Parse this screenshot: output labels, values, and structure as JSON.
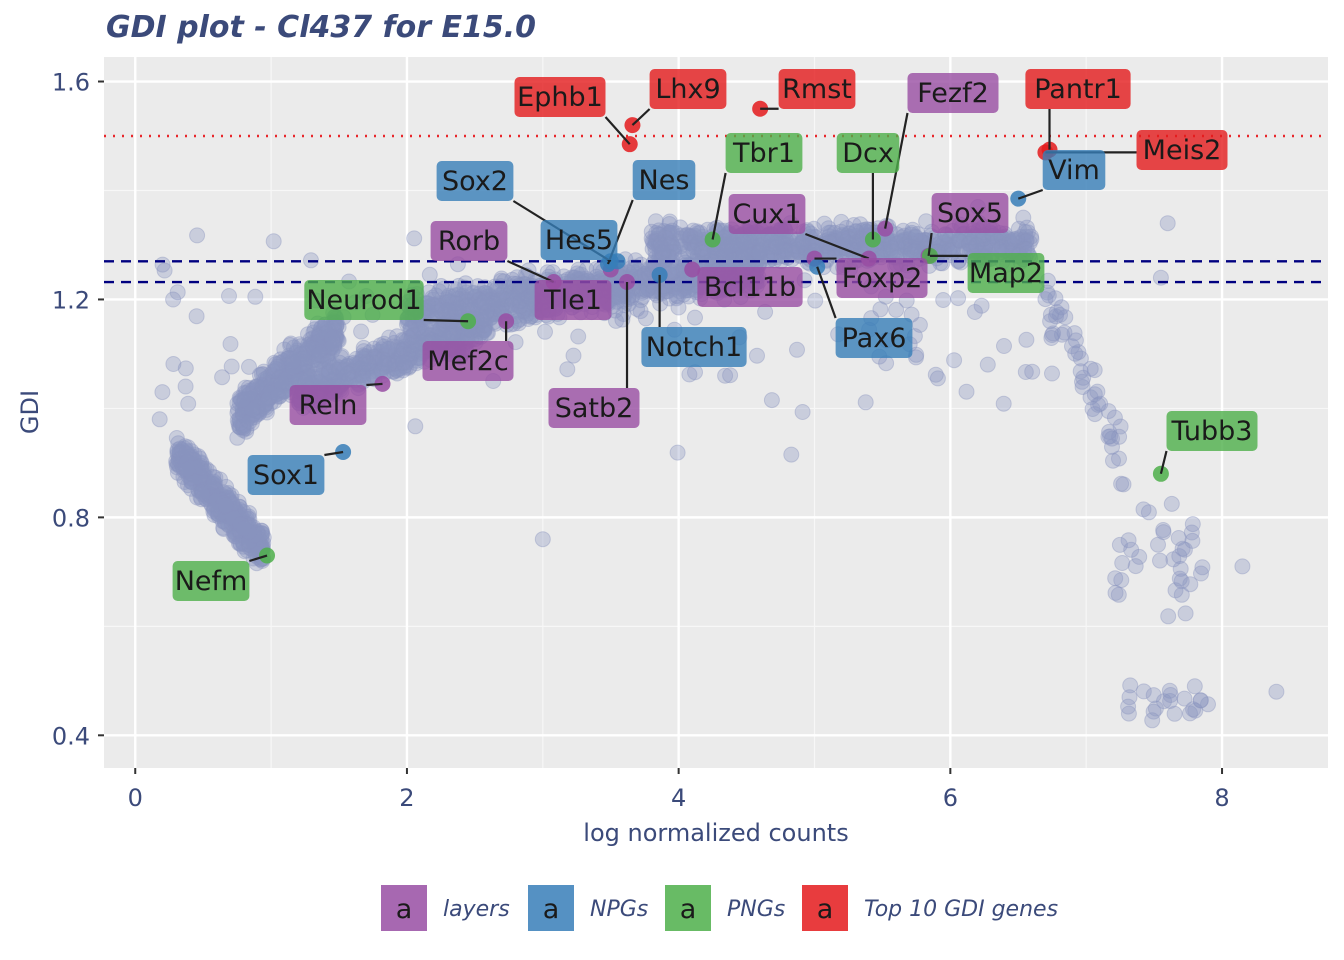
{
  "chart_data": {
    "type": "scatter",
    "title": "GDI plot - Cl437 for E15.0",
    "xlabel": "log normalized counts",
    "ylabel": "GDI",
    "xlim": [
      -0.23,
      8.78
    ],
    "ylim": [
      0.34,
      1.645
    ],
    "x_ticks": [
      0,
      2,
      4,
      6,
      8
    ],
    "x_tick_labels": [
      "0",
      "2",
      "4",
      "6",
      "8"
    ],
    "y_ticks": [
      0.4,
      0.8,
      1.2,
      1.6
    ],
    "y_tick_labels": [
      "0.4",
      "0.8",
      "1.2",
      "1.6"
    ],
    "grid": true,
    "background_points_color": "#8a94bf",
    "reference_lines": [
      {
        "y": 1.5,
        "style": "dotted",
        "color": "#e8262b"
      },
      {
        "y": 1.27,
        "style": "dashed",
        "color": "#000080"
      },
      {
        "y": 1.232,
        "style": "dashed",
        "color": "#000080"
      }
    ],
    "categories": [
      {
        "name": "layers",
        "color": "#984ea3"
      },
      {
        "name": "NPGs",
        "color": "#377eb8"
      },
      {
        "name": "PNGs",
        "color": "#4daf4a"
      },
      {
        "name": "Top 10 GDI genes",
        "color": "#e41a1c"
      }
    ],
    "legend_symbol": "a",
    "legend_position": "bottom",
    "genes": [
      {
        "gene": "Ephb1",
        "x": 3.64,
        "y": 1.485,
        "category": "Top 10 GDI genes"
      },
      {
        "gene": "Lhx9",
        "x": 3.66,
        "y": 1.52,
        "category": "Top 10 GDI genes"
      },
      {
        "gene": "Rmst",
        "x": 4.6,
        "y": 1.55,
        "category": "Top 10 GDI genes"
      },
      {
        "gene": "Pantr1",
        "x": 6.73,
        "y": 1.475,
        "category": "Top 10 GDI genes"
      },
      {
        "gene": "Meis2",
        "x": 6.7,
        "y": 1.47,
        "category": "Top 10 GDI genes"
      },
      {
        "gene": "Fezf2",
        "x": 5.52,
        "y": 1.33,
        "category": "layers"
      },
      {
        "gene": "Sox5",
        "x": 5.84,
        "y": 1.28,
        "category": "layers"
      },
      {
        "gene": "Cux1",
        "x": 5.4,
        "y": 1.275,
        "category": "layers"
      },
      {
        "gene": "Rorb",
        "x": 3.08,
        "y": 1.232,
        "category": "layers"
      },
      {
        "gene": "Tle1",
        "x": 3.5,
        "y": 1.255,
        "category": "layers"
      },
      {
        "gene": "Satb2",
        "x": 3.62,
        "y": 1.232,
        "category": "layers"
      },
      {
        "gene": "Bcl11b",
        "x": 4.1,
        "y": 1.255,
        "category": "layers"
      },
      {
        "gene": "Foxp2",
        "x": 5.0,
        "y": 1.275,
        "category": "layers"
      },
      {
        "gene": "Mef2c",
        "x": 2.73,
        "y": 1.16,
        "category": "layers"
      },
      {
        "gene": "Reln",
        "x": 1.82,
        "y": 1.045,
        "category": "layers"
      },
      {
        "gene": "Sox2",
        "x": 3.5,
        "y": 1.27,
        "category": "NPGs"
      },
      {
        "gene": "Nes",
        "x": 3.48,
        "y": 1.265,
        "category": "NPGs"
      },
      {
        "gene": "Hes5",
        "x": 3.55,
        "y": 1.27,
        "category": "NPGs"
      },
      {
        "gene": "Notch1",
        "x": 3.86,
        "y": 1.245,
        "category": "NPGs"
      },
      {
        "gene": "Pax6",
        "x": 5.02,
        "y": 1.26,
        "category": "NPGs"
      },
      {
        "gene": "Vim",
        "x": 6.5,
        "y": 1.385,
        "category": "NPGs"
      },
      {
        "gene": "Sox1",
        "x": 1.53,
        "y": 0.92,
        "category": "NPGs"
      },
      {
        "gene": "Tbr1",
        "x": 4.25,
        "y": 1.31,
        "category": "PNGs"
      },
      {
        "gene": "Dcx",
        "x": 5.43,
        "y": 1.31,
        "category": "PNGs"
      },
      {
        "gene": "Map2",
        "x": 5.85,
        "y": 1.28,
        "category": "PNGs"
      },
      {
        "gene": "Neurod1",
        "x": 2.45,
        "y": 1.16,
        "category": "PNGs"
      },
      {
        "gene": "Tubb3",
        "x": 7.55,
        "y": 0.88,
        "category": "PNGs"
      },
      {
        "gene": "Nefm",
        "x": 0.97,
        "y": 0.73,
        "category": "PNGs"
      }
    ]
  }
}
